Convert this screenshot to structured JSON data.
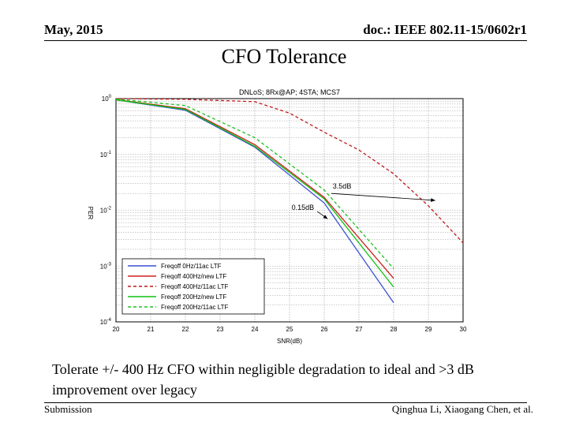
{
  "header": {
    "date": "May, 2015",
    "doc": "doc.: IEEE 802.11-15/0602r1"
  },
  "slide": {
    "title": "CFO Tolerance",
    "caption": "Tolerate +/- 400 Hz CFO within negligible degradation to ideal and >3 dB improvement over legacy"
  },
  "footer": {
    "left": "Submission",
    "right": "Qinghua Li, Xiaogang Chen, et al."
  },
  "chart_data": {
    "type": "line",
    "title": "DNLoS; 8Rx@AP; 4STA; MCS7",
    "xlabel": "SNR(dB)",
    "ylabel": "PER",
    "yscale": "log",
    "xlim": [
      20,
      30
    ],
    "ylim": [
      0.0001,
      1
    ],
    "x_ticks": [
      20,
      21,
      22,
      23,
      24,
      25,
      26,
      27,
      28,
      29,
      30
    ],
    "x_tick_labels": [
      "20",
      "21",
      "22",
      "23",
      "24",
      "25",
      "26",
      "27",
      "28",
      "29",
      "30"
    ],
    "y_ticks": [
      1,
      0.1,
      0.01,
      0.001,
      0.0001
    ],
    "y_tick_labels": [
      "10^0",
      "10^-1",
      "10^-2",
      "10^-3",
      "10^-4"
    ],
    "grid": true,
    "legend_position": "bottom-left",
    "series": [
      {
        "name": "Freqoff 0Hz/11ac LTF",
        "color": "#3a4fd1",
        "dash": "solid",
        "x": [
          20,
          22,
          24,
          26,
          28
        ],
        "y": [
          0.95,
          0.62,
          0.135,
          0.0135,
          0.00022
        ]
      },
      {
        "name": "Freqoff 400Hz/new LTF",
        "color": "#d02020",
        "dash": "solid",
        "x": [
          20,
          22,
          24,
          26,
          28
        ],
        "y": [
          0.96,
          0.66,
          0.15,
          0.017,
          0.0006
        ]
      },
      {
        "name": "Freqoff 400Hz/11ac LTF",
        "color": "#c01818",
        "dash": "dashed",
        "x": [
          20,
          22,
          24,
          25,
          26,
          27,
          28,
          29,
          30
        ],
        "y": [
          1.0,
          0.97,
          0.88,
          0.55,
          0.25,
          0.12,
          0.045,
          0.012,
          0.0026
        ]
      },
      {
        "name": "Freqoff 200Hz/new LTF",
        "color": "#10c010",
        "dash": "solid",
        "x": [
          20,
          22,
          24,
          26,
          28
        ],
        "y": [
          0.95,
          0.64,
          0.14,
          0.016,
          0.00042
        ]
      },
      {
        "name": "Freqoff 200Hz/11ac LTF",
        "color": "#20c020",
        "dash": "dashed",
        "x": [
          20,
          22,
          24,
          26,
          28
        ],
        "y": [
          0.98,
          0.75,
          0.2,
          0.023,
          0.0009
        ]
      }
    ],
    "annotations": [
      {
        "text": "3.5dB",
        "arrow_from": [
          26.2,
          0.02
        ],
        "arrow_to": [
          29.2,
          0.015
        ]
      },
      {
        "text": "0.15dB",
        "arrow_from": [
          25.8,
          0.0095
        ],
        "arrow_to": [
          26.1,
          0.007
        ]
      }
    ]
  }
}
